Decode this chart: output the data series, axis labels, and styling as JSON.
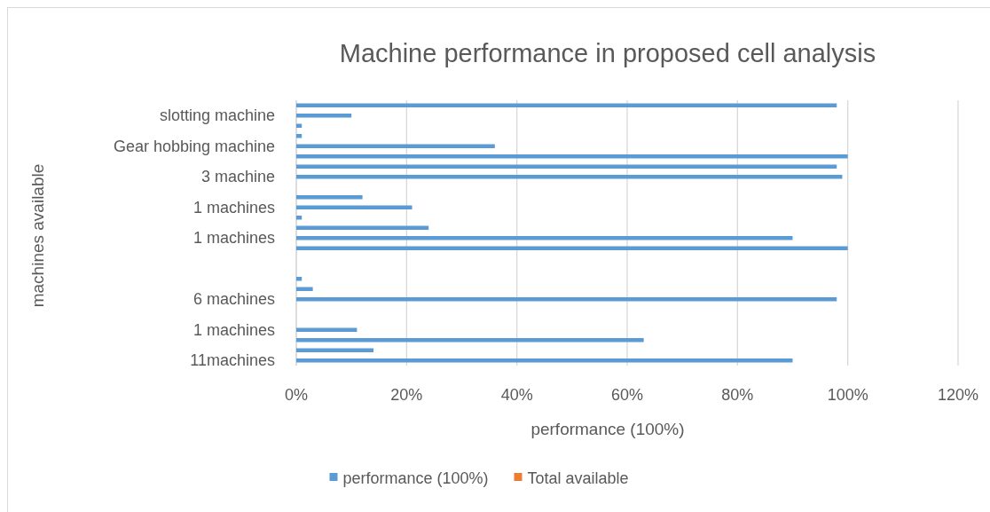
{
  "chart_data": {
    "type": "bar",
    "orientation": "horizontal",
    "title": "Machine performance in proposed cell analysis",
    "xlabel": "performance (100%)",
    "ylabel": "machines available",
    "categories": [
      null,
      "slotting machine",
      null,
      null,
      "Gear hobbing machine",
      null,
      null,
      "3 machine",
      null,
      null,
      "1 machines",
      null,
      null,
      "1 machines",
      null,
      null,
      null,
      null,
      null,
      "6 machines",
      null,
      null,
      "1 machines",
      null,
      null,
      "11machines"
    ],
    "series": [
      {
        "name": "performance (100%)",
        "color": "#5b9bd5",
        "values": [
          98,
          10,
          1,
          1,
          36,
          100,
          98,
          99,
          null,
          12,
          21,
          1,
          24,
          90,
          100,
          null,
          null,
          1,
          3,
          98,
          null,
          null,
          11,
          63,
          14,
          90
        ]
      },
      {
        "name": "Total available",
        "color": "#ed7d31",
        "values": [
          null,
          null,
          null,
          null,
          null,
          null,
          null,
          null,
          null,
          null,
          null,
          null,
          null,
          null,
          null,
          null,
          null,
          null,
          null,
          null,
          null,
          null,
          null,
          null,
          null,
          null
        ]
      }
    ],
    "xlim": [
      0,
      120
    ],
    "xticks": [
      {
        "value": 0,
        "label": "0%"
      },
      {
        "value": 20,
        "label": "20%"
      },
      {
        "value": 40,
        "label": "40%"
      },
      {
        "value": 60,
        "label": "60%"
      },
      {
        "value": 80,
        "label": "80%"
      },
      {
        "value": 100,
        "label": "100%"
      },
      {
        "value": 120,
        "label": "120%"
      }
    ],
    "grid": "x",
    "legend": "bottom"
  }
}
